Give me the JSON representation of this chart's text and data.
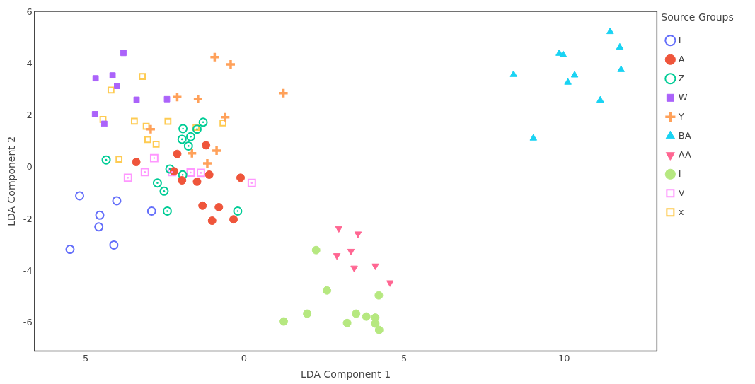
{
  "chart_data": {
    "type": "scatter",
    "xlabel": "LDA Component 1",
    "ylabel": "LDA Component 2",
    "legend_title": "Source Groups",
    "legend": "right",
    "grid": false,
    "xlim": [
      -6.55,
      12.9
    ],
    "ylim": [
      -7.1,
      6.05
    ],
    "xticks": [
      -5,
      0,
      5,
      10
    ],
    "yticks": [
      -6,
      -4,
      -2,
      0,
      2,
      4,
      6
    ],
    "series": [
      {
        "name": "F",
        "color": "#636efa",
        "marker": "circle-open",
        "x": [
          -5.14,
          -3.98,
          -4.51,
          -4.54,
          -2.89,
          -4.07,
          -5.44
        ],
        "values": [
          -1.09,
          -1.28,
          -1.84,
          -2.29,
          -1.68,
          -2.99,
          -3.16
        ]
      },
      {
        "name": "A",
        "color": "#ef553b",
        "marker": "circle",
        "x": [
          -1.19,
          -2.09,
          -3.37,
          -2.19,
          -1.09,
          -1.94,
          -1.47,
          -0.11,
          -1.3,
          -0.79,
          -1.0,
          -0.33
        ],
        "values": [
          0.87,
          0.53,
          0.22,
          -0.14,
          -0.27,
          -0.49,
          -0.54,
          -0.39,
          -1.47,
          -1.53,
          -2.05,
          -2.0
        ]
      },
      {
        "name": "Z",
        "color": "#00cc96",
        "marker": "circle-open-dot",
        "x": [
          -1.91,
          -1.47,
          -1.28,
          -1.67,
          -1.94,
          -1.74,
          -2.32,
          -1.92,
          -2.71,
          -2.5,
          -2.4,
          -0.2,
          -4.31
        ],
        "values": [
          1.51,
          1.49,
          1.76,
          1.2,
          1.1,
          0.84,
          -0.05,
          -0.28,
          -0.59,
          -0.91,
          -1.68,
          -1.68,
          0.3
        ]
      },
      {
        "name": "W",
        "color": "#ab63fa",
        "marker": "square",
        "x": [
          -3.77,
          -4.64,
          -4.11,
          -3.97,
          -3.36,
          -2.41,
          -4.66,
          -4.37
        ],
        "values": [
          4.44,
          3.46,
          3.57,
          3.16,
          2.63,
          2.65,
          2.07,
          1.7
        ]
      },
      {
        "name": "Y",
        "color": "#ffa15a",
        "marker": "cross",
        "x": [
          -0.92,
          -0.42,
          -2.09,
          -1.44,
          -0.59,
          -2.92,
          -0.86,
          -1.63,
          -1.15,
          1.23
        ],
        "values": [
          4.28,
          4.0,
          2.73,
          2.66,
          1.95,
          1.49,
          0.66,
          0.56,
          0.17,
          2.88
        ]
      },
      {
        "name": "BA",
        "color": "#19d3f3",
        "marker": "triangle",
        "x": [
          11.44,
          11.74,
          9.85,
          9.97,
          8.42,
          10.33,
          10.12,
          11.78,
          11.13,
          9.04
        ],
        "values": [
          5.26,
          4.66,
          4.42,
          4.37,
          3.6,
          3.58,
          3.3,
          3.79,
          2.61,
          1.14
        ]
      },
      {
        "name": "AA",
        "color": "#ff6692",
        "marker": "triangle-down",
        "x": [
          2.96,
          3.56,
          3.34,
          2.9,
          3.44,
          4.1,
          4.56
        ],
        "values": [
          -2.35,
          -2.56,
          -3.23,
          -3.4,
          -3.88,
          -3.8,
          -4.45
        ]
      },
      {
        "name": "I",
        "color": "#b6e880",
        "marker": "circle",
        "x": [
          2.25,
          2.59,
          4.21,
          1.97,
          1.24,
          3.5,
          3.82,
          4.1,
          3.22,
          4.1,
          4.22
        ],
        "values": [
          -3.19,
          -4.75,
          -4.94,
          -5.65,
          -5.95,
          -5.65,
          -5.76,
          -5.8,
          -6.01,
          -6.03,
          -6.28
        ]
      },
      {
        "name": "V",
        "color": "#ff97ff",
        "marker": "square-open-dot",
        "x": [
          -2.81,
          -3.1,
          -3.63,
          -2.25,
          -1.67,
          -1.35,
          0.24
        ],
        "values": [
          0.37,
          -0.17,
          -0.39,
          -0.17,
          -0.19,
          -0.2,
          -0.59
        ]
      },
      {
        "name": "x",
        "color": "#fecb52",
        "marker": "square-open",
        "x": [
          -3.18,
          -4.16,
          -4.41,
          -3.43,
          -3.06,
          -2.38,
          -1.5,
          -0.66,
          -3.01,
          -2.75,
          -3.91
        ],
        "values": [
          3.53,
          3.0,
          1.87,
          1.8,
          1.6,
          1.79,
          1.56,
          1.73,
          1.09,
          0.91,
          0.33
        ]
      }
    ]
  }
}
